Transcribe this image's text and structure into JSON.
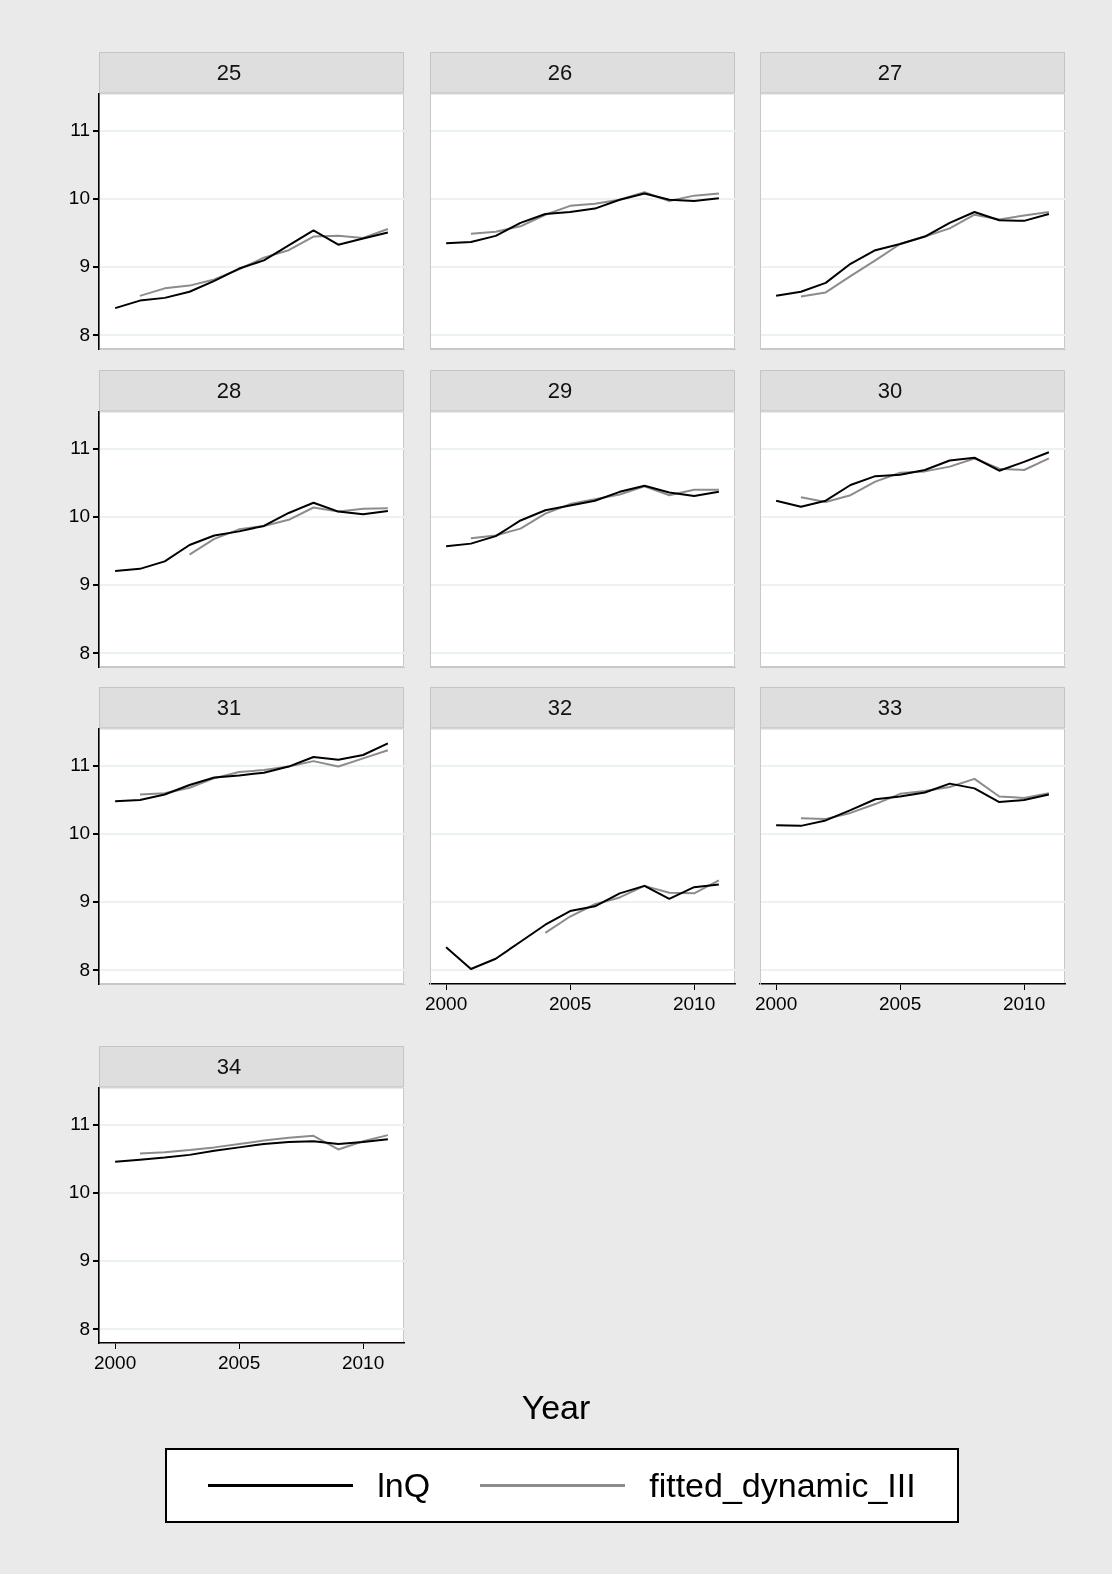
{
  "chart_data": [
    {
      "type": "line",
      "title": "25",
      "x": [
        2000,
        2001,
        2002,
        2003,
        2004,
        2005,
        2006,
        2007,
        2008,
        2009,
        2010,
        2011
      ],
      "xlim": [
        1999.35,
        2011.65
      ],
      "xticks": [
        2000,
        2005,
        2010
      ],
      "ylim": [
        7.8,
        11.55
      ],
      "yticks": [
        8,
        9,
        10,
        11
      ],
      "grid": "y",
      "tick_labels": "y",
      "series": [
        {
          "color": "#000000",
          "values": [
            8.4,
            8.51,
            8.55,
            8.64,
            8.8,
            8.98,
            9.1,
            9.32,
            9.54,
            9.33,
            9.42,
            9.51
          ]
        },
        {
          "color": "#8c8c8c",
          "values": [
            null,
            8.58,
            8.69,
            8.73,
            8.82,
            8.97,
            9.14,
            9.25,
            9.45,
            9.46,
            9.43,
            9.56
          ]
        }
      ]
    },
    {
      "type": "line",
      "title": "26",
      "x": [
        2000,
        2001,
        2002,
        2003,
        2004,
        2005,
        2006,
        2007,
        2008,
        2009,
        2010,
        2011
      ],
      "xlim": [
        1999.35,
        2011.65
      ],
      "xticks": [
        2000,
        2005,
        2010
      ],
      "ylim": [
        7.8,
        11.55
      ],
      "yticks": [
        8,
        9,
        10,
        11
      ],
      "grid": "y",
      "tick_labels": false,
      "series": [
        {
          "color": "#000000",
          "values": [
            9.35,
            9.37,
            9.46,
            9.65,
            9.78,
            9.81,
            9.86,
            9.99,
            10.08,
            9.99,
            9.97,
            10.01
          ]
        },
        {
          "color": "#8c8c8c",
          "values": [
            null,
            9.49,
            9.52,
            9.6,
            9.77,
            9.9,
            9.93,
            9.99,
            10.1,
            9.97,
            10.05,
            10.08
          ]
        }
      ]
    },
    {
      "type": "line",
      "title": "27",
      "x": [
        2000,
        2001,
        2002,
        2003,
        2004,
        2005,
        2006,
        2007,
        2008,
        2009,
        2010,
        2011
      ],
      "xlim": [
        1999.35,
        2011.65
      ],
      "xticks": [
        2000,
        2005,
        2010
      ],
      "ylim": [
        7.8,
        11.55
      ],
      "yticks": [
        8,
        9,
        10,
        11
      ],
      "grid": "y",
      "tick_labels": false,
      "series": [
        {
          "color": "#000000",
          "values": [
            8.58,
            8.64,
            8.77,
            9.05,
            9.25,
            9.34,
            9.45,
            9.65,
            9.81,
            9.69,
            9.68,
            9.78
          ]
        },
        {
          "color": "#8c8c8c",
          "values": [
            null,
            8.57,
            8.63,
            8.87,
            9.1,
            9.34,
            9.45,
            9.57,
            9.77,
            9.7,
            9.76,
            9.81
          ]
        }
      ]
    },
    {
      "type": "line",
      "title": "28",
      "x": [
        2000,
        2001,
        2002,
        2003,
        2004,
        2005,
        2006,
        2007,
        2008,
        2009,
        2010,
        2011
      ],
      "xlim": [
        1999.35,
        2011.65
      ],
      "xticks": [
        2000,
        2005,
        2010
      ],
      "ylim": [
        7.8,
        11.55
      ],
      "yticks": [
        8,
        9,
        10,
        11
      ],
      "grid": "y",
      "tick_labels": "y",
      "series": [
        {
          "color": "#000000",
          "values": [
            9.21,
            9.24,
            9.35,
            9.59,
            9.73,
            9.79,
            9.87,
            10.06,
            10.21,
            10.08,
            10.04,
            10.09
          ]
        },
        {
          "color": "#8c8c8c",
          "values": [
            null,
            null,
            null,
            9.45,
            9.68,
            9.82,
            9.87,
            9.96,
            10.14,
            10.08,
            10.12,
            10.13
          ]
        }
      ]
    },
    {
      "type": "line",
      "title": "29",
      "x": [
        2000,
        2001,
        2002,
        2003,
        2004,
        2005,
        2006,
        2007,
        2008,
        2009,
        2010,
        2011
      ],
      "xlim": [
        1999.35,
        2011.65
      ],
      "xticks": [
        2000,
        2005,
        2010
      ],
      "ylim": [
        7.8,
        11.55
      ],
      "yticks": [
        8,
        9,
        10,
        11
      ],
      "grid": "y",
      "tick_labels": false,
      "series": [
        {
          "color": "#000000",
          "values": [
            9.57,
            9.61,
            9.72,
            9.95,
            10.1,
            10.17,
            10.24,
            10.37,
            10.46,
            10.36,
            10.31,
            10.37
          ]
        },
        {
          "color": "#8c8c8c",
          "values": [
            null,
            9.69,
            9.73,
            9.83,
            10.05,
            10.19,
            10.26,
            10.33,
            10.45,
            10.32,
            10.4,
            10.4
          ]
        }
      ]
    },
    {
      "type": "line",
      "title": "30",
      "x": [
        2000,
        2001,
        2002,
        2003,
        2004,
        2005,
        2006,
        2007,
        2008,
        2009,
        2010,
        2011
      ],
      "xlim": [
        1999.35,
        2011.65
      ],
      "xticks": [
        2000,
        2005,
        2010
      ],
      "ylim": [
        7.8,
        11.55
      ],
      "yticks": [
        8,
        9,
        10,
        11
      ],
      "grid": "y",
      "tick_labels": false,
      "series": [
        {
          "color": "#000000",
          "values": [
            10.24,
            10.15,
            10.24,
            10.47,
            10.6,
            10.62,
            10.69,
            10.83,
            10.87,
            10.68,
            10.81,
            10.95
          ]
        },
        {
          "color": "#8c8c8c",
          "values": [
            null,
            10.29,
            10.22,
            10.32,
            10.52,
            10.65,
            10.67,
            10.74,
            10.86,
            10.71,
            10.69,
            10.86
          ]
        }
      ]
    },
    {
      "type": "line",
      "title": "31",
      "x": [
        2000,
        2001,
        2002,
        2003,
        2004,
        2005,
        2006,
        2007,
        2008,
        2009,
        2010,
        2011
      ],
      "xlim": [
        1999.35,
        2011.65
      ],
      "xticks": [
        2000,
        2005,
        2010
      ],
      "ylim": [
        7.8,
        11.55
      ],
      "yticks": [
        8,
        9,
        10,
        11
      ],
      "grid": "y",
      "tick_labels": "y",
      "series": [
        {
          "color": "#000000",
          "values": [
            10.48,
            10.5,
            10.58,
            10.72,
            10.83,
            10.86,
            10.9,
            10.99,
            11.13,
            11.09,
            11.16,
            11.33
          ]
        },
        {
          "color": "#8c8c8c",
          "values": [
            null,
            10.58,
            10.6,
            10.68,
            10.82,
            10.91,
            10.94,
            10.99,
            11.07,
            10.99,
            11.11,
            11.23
          ]
        }
      ]
    },
    {
      "type": "line",
      "title": "32",
      "x": [
        2000,
        2001,
        2002,
        2003,
        2004,
        2005,
        2006,
        2007,
        2008,
        2009,
        2010,
        2011
      ],
      "xlim": [
        1999.35,
        2011.65
      ],
      "xticks": [
        2000,
        2005,
        2010
      ],
      "ylim": [
        7.8,
        11.55
      ],
      "yticks": [
        8,
        9,
        10,
        11
      ],
      "grid": "y",
      "tick_labels": "x",
      "series": [
        {
          "color": "#000000",
          "values": [
            8.34,
            8.02,
            8.17,
            8.42,
            8.67,
            8.87,
            8.94,
            9.13,
            9.24,
            9.05,
            9.22,
            9.26
          ]
        },
        {
          "color": "#8c8c8c",
          "values": [
            null,
            null,
            null,
            null,
            8.55,
            8.79,
            8.97,
            9.07,
            9.24,
            9.14,
            9.13,
            9.32
          ]
        }
      ]
    },
    {
      "type": "line",
      "title": "33",
      "x": [
        2000,
        2001,
        2002,
        2003,
        2004,
        2005,
        2006,
        2007,
        2008,
        2009,
        2010,
        2011
      ],
      "xlim": [
        1999.35,
        2011.65
      ],
      "xticks": [
        2000,
        2005,
        2010
      ],
      "ylim": [
        7.8,
        11.55
      ],
      "yticks": [
        8,
        9,
        10,
        11
      ],
      "grid": "y",
      "tick_labels": "x",
      "series": [
        {
          "color": "#000000",
          "values": [
            10.13,
            10.12,
            10.2,
            10.35,
            10.51,
            10.55,
            10.61,
            10.74,
            10.67,
            10.47,
            10.5,
            10.58
          ]
        },
        {
          "color": "#8c8c8c",
          "values": [
            null,
            10.23,
            10.22,
            10.31,
            10.44,
            10.59,
            10.63,
            10.69,
            10.81,
            10.55,
            10.53,
            10.6
          ]
        }
      ]
    },
    {
      "type": "line",
      "title": "34",
      "xlabel": "Year",
      "legend": "bottom",
      "x": [
        2000,
        2001,
        2002,
        2003,
        2004,
        2005,
        2006,
        2007,
        2008,
        2009,
        2010,
        2011
      ],
      "xlim": [
        1999.35,
        2011.65
      ],
      "xticks": [
        2000,
        2005,
        2010
      ],
      "ylim": [
        7.8,
        11.55
      ],
      "yticks": [
        8,
        9,
        10,
        11
      ],
      "grid": "y",
      "series": [
        {
          "name": "lnQ",
          "color": "#000000",
          "values": [
            10.46,
            10.49,
            10.52,
            10.56,
            10.62,
            10.67,
            10.72,
            10.75,
            10.76,
            10.72,
            10.75,
            10.79
          ]
        },
        {
          "name": "fitted_dynamic_III",
          "color": "#8c8c8c",
          "values": [
            null,
            10.58,
            10.6,
            10.63,
            10.67,
            10.72,
            10.77,
            10.81,
            10.84,
            10.64,
            10.76,
            10.85
          ]
        }
      ]
    }
  ]
}
